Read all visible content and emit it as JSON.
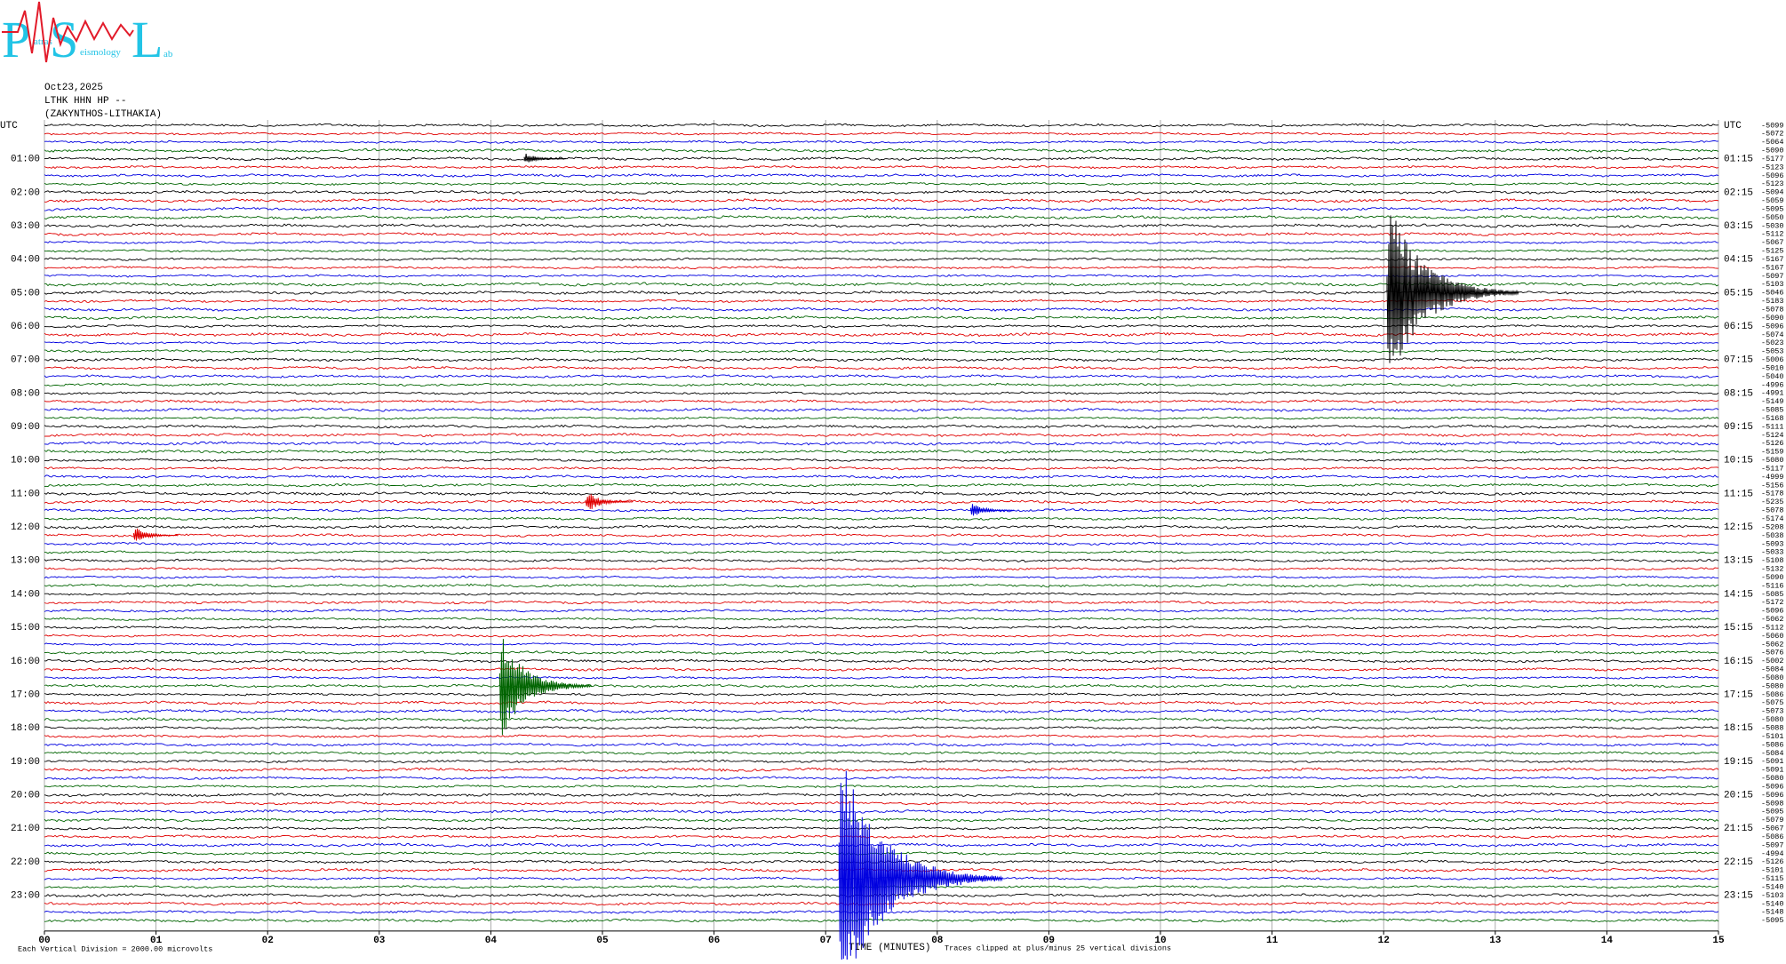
{
  "logo": {
    "p": "P",
    "atras": "atras",
    "s": "S",
    "eismology": "eismology",
    "l": "L",
    "ab": "ab"
  },
  "chart_data": {
    "type": "helicorder",
    "date": "Oct23,2025",
    "station": "LTHK HHN HP --",
    "location": "(ZAKYNTHOS-LITHAKIA)",
    "x_label": "TIME (MINUTES)",
    "scale_note": "Each Vertical Division = 2000.00 microvolts",
    "clip_note": "Traces clipped at plus/minus 25 vertical divisions",
    "xlim": [
      0,
      15
    ],
    "xticks": [
      {
        "value": 0,
        "label": "00"
      },
      {
        "value": 1,
        "label": "01"
      },
      {
        "value": 2,
        "label": "02"
      },
      {
        "value": 3,
        "label": "03"
      },
      {
        "value": 4,
        "label": "04"
      },
      {
        "value": 5,
        "label": "05"
      },
      {
        "value": 6,
        "label": "06"
      },
      {
        "value": 7,
        "label": "07"
      },
      {
        "value": 8,
        "label": "08"
      },
      {
        "value": 9,
        "label": "09"
      },
      {
        "value": 10,
        "label": "10"
      },
      {
        "value": 11,
        "label": "11"
      },
      {
        "value": 12,
        "label": "12"
      },
      {
        "value": 13,
        "label": "13"
      },
      {
        "value": 14,
        "label": "14"
      },
      {
        "value": 15,
        "label": "15"
      }
    ],
    "grid": true,
    "colors": [
      "#000000",
      "#e00000",
      "#0000e0",
      "#006400"
    ],
    "left_labels": [
      "UTC",
      "01:00",
      "02:00",
      "03:00",
      "04:00",
      "05:00",
      "06:00",
      "07:00",
      "08:00",
      "09:00",
      "10:00",
      "11:00",
      "12:00",
      "13:00",
      "14:00",
      "15:00",
      "16:00",
      "17:00",
      "18:00",
      "19:00",
      "20:00",
      "21:00",
      "22:00",
      "23:00"
    ],
    "right_labels": [
      "UTC",
      "01:15",
      "02:15",
      "03:15",
      "04:15",
      "05:15",
      "06:15",
      "07:15",
      "08:15",
      "09:15",
      "10:15",
      "11:15",
      "12:15",
      "13:15",
      "14:15",
      "15:15",
      "16:15",
      "17:15",
      "18:15",
      "19:15",
      "20:15",
      "21:15",
      "22:15",
      "23:15"
    ],
    "row_offsets": [
      -5099,
      -5072,
      -5064,
      -5090,
      -5177,
      -5123,
      -5096,
      -5123,
      -5094,
      -5059,
      -5095,
      -5050,
      -5030,
      -5112,
      -5067,
      -5125,
      -5167,
      -5167,
      -5097,
      -5103,
      -5046,
      -5183,
      -5078,
      -5090,
      -5096,
      -5074,
      -5023,
      -5053,
      -5006,
      -5010,
      -5040,
      -4996,
      -4991,
      -5149,
      -5085,
      -5168,
      -5111,
      -5124,
      -5126,
      -5159,
      -5080,
      -5117,
      -4999,
      -5156,
      -5178,
      -5235,
      -5078,
      -5174,
      -5208,
      -5038,
      -5093,
      -5033,
      -5108,
      -5132,
      -5090,
      -5116,
      -5085,
      -5172,
      -5096,
      -5062,
      -5112,
      -5060,
      -5062,
      -5076,
      -5002,
      -5084,
      -5080,
      -5080,
      -5086,
      -5075,
      -5073,
      -5080,
      -5088,
      -5101,
      -5086,
      -5084,
      -5091,
      -5091,
      -5080,
      -5096,
      -5096,
      -5098,
      -5095,
      -5079,
      -5067,
      -5086,
      -5097,
      -4994,
      -5126,
      -5101,
      -5115,
      -5140,
      -5103,
      -5140,
      -5148,
      -5095
    ],
    "events": [
      {
        "row": 20,
        "minute": 12.03,
        "size": 12
      },
      {
        "row": 67,
        "minute": 4.08,
        "size": 7
      },
      {
        "row": 90,
        "minute": 7.12,
        "size": 16
      },
      {
        "row": 45,
        "minute": 4.85,
        "size": 1.5
      },
      {
        "row": 46,
        "minute": 8.3,
        "size": 1
      },
      {
        "row": 49,
        "minute": 0.8,
        "size": 1.2
      },
      {
        "row": 4,
        "minute": 4.3,
        "size": 0.8
      }
    ]
  }
}
